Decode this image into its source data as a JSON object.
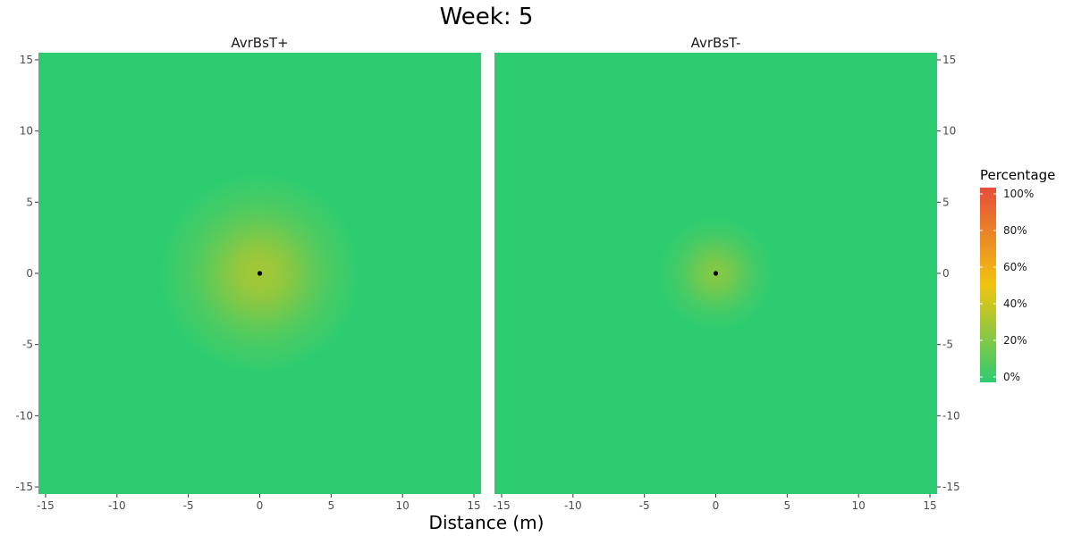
{
  "chart_data": {
    "type": "heatmap",
    "title": "Week: 5",
    "xlabel": "Distance (m)",
    "ylabel": "",
    "xlim": [
      -15.5,
      15.5
    ],
    "ylim": [
      -15.5,
      15.5
    ],
    "x_ticks": [
      -15,
      -10,
      -5,
      0,
      5,
      10,
      15
    ],
    "y_ticks": [
      -15,
      -10,
      -5,
      0,
      5,
      10,
      15
    ],
    "x_tick_labels": [
      "-15",
      "-10",
      "-5",
      "0",
      "5",
      "10",
      "15"
    ],
    "y_tick_labels": [
      "-15",
      "-10",
      "-5",
      "0",
      "5",
      "10",
      "15"
    ],
    "grid": false,
    "legend": {
      "title": "Percentage",
      "position": "right",
      "labels": [
        "0%",
        "20%",
        "40%",
        "60%",
        "80%",
        "100%"
      ],
      "values": [
        0,
        20,
        40,
        60,
        80,
        100
      ],
      "colors": [
        "#2ecc71",
        "#f1c40f",
        "#e74c3c"
      ]
    },
    "panels": [
      {
        "name": "AvrBsT+",
        "center": [
          0,
          0
        ],
        "peak_percent": 30,
        "spread_m": 7
      },
      {
        "name": "AvrBsT-",
        "center": [
          0,
          0
        ],
        "peak_percent": 22,
        "spread_m": 4
      }
    ],
    "point_color": "#000000"
  }
}
